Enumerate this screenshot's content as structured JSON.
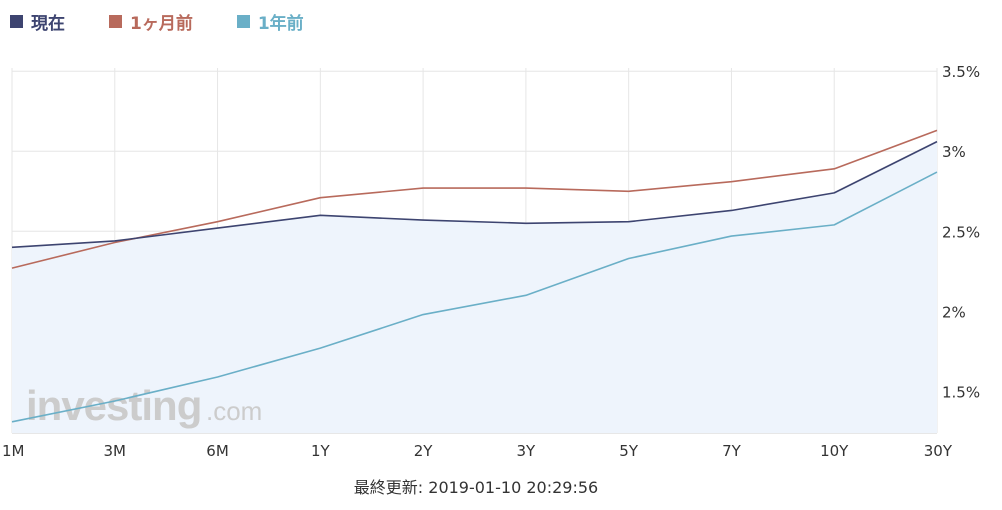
{
  "legend": [
    {
      "label": "現在",
      "color": "#3d4470"
    },
    {
      "label": "1ヶ月前",
      "color": "#b86a5c"
    },
    {
      "label": "1年前",
      "color": "#6aafc7"
    }
  ],
  "watermark": {
    "main": "investing",
    "suffix": ".com"
  },
  "footer": {
    "text": "最終更新: 2019-01-10 20:29:56"
  },
  "chart_data": {
    "type": "line",
    "categories": [
      "1M",
      "3M",
      "6M",
      "1Y",
      "2Y",
      "3Y",
      "5Y",
      "7Y",
      "10Y",
      "30Y"
    ],
    "yticks": [
      "3.5%",
      "3%",
      "2.5%",
      "2%",
      "1.5%"
    ],
    "ytick_values": [
      3.5,
      3.0,
      2.5,
      2.0,
      1.5
    ],
    "ylim": [
      1.24,
      3.52
    ],
    "grid": true,
    "legend_position": "top-left",
    "series": [
      {
        "name": "現在",
        "color": "#3d4470",
        "fill": "#eef4fc",
        "values": [
          2.4,
          2.44,
          2.52,
          2.6,
          2.57,
          2.55,
          2.56,
          2.63,
          2.74,
          3.06
        ]
      },
      {
        "name": "1ヶ月前",
        "color": "#b86a5c",
        "values": [
          2.27,
          2.43,
          2.56,
          2.71,
          2.77,
          2.77,
          2.75,
          2.81,
          2.89,
          3.13
        ]
      },
      {
        "name": "1年前",
        "color": "#6aafc7",
        "values": [
          1.31,
          1.44,
          1.59,
          1.77,
          1.98,
          2.1,
          2.33,
          2.47,
          2.54,
          2.87
        ]
      }
    ]
  }
}
